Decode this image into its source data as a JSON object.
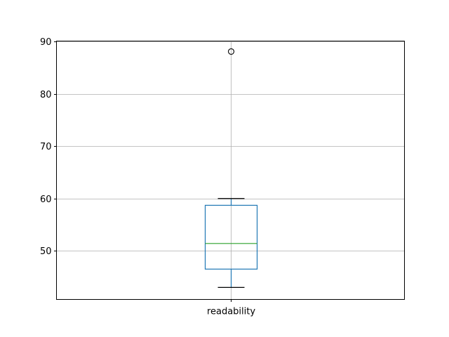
{
  "chart_data": {
    "type": "box",
    "title": "",
    "xlabel": "",
    "ylabel": "",
    "categories": [
      "readability"
    ],
    "boxes": [
      {
        "label": "readability",
        "whisker_low": 43.0,
        "q1": 46.5,
        "median": 51.4,
        "q3": 58.7,
        "whisker_high": 60.0,
        "outliers": [
          88.1
        ]
      }
    ],
    "ylim": [
      40.7,
      90.1
    ],
    "yticks": [
      50,
      60,
      70,
      80,
      90
    ],
    "grid": true,
    "colors": {
      "box": "#1f77b4",
      "median": "#2ca02c",
      "whisker_cap": "#000000",
      "grid": "#b0b0b0"
    }
  }
}
